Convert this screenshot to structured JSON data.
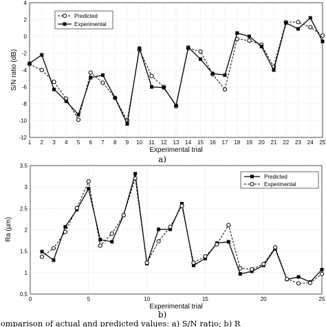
{
  "chart_data": [
    {
      "type": "line",
      "xlabel": "Experimental trial",
      "ylabel": "S/N ratio (dB)",
      "panel_label": "a)",
      "xlim": [
        1,
        25
      ],
      "ylim": [
        -12,
        4
      ],
      "yticks": [
        -12,
        -10,
        -8,
        -6,
        -4,
        -2,
        0,
        2,
        4
      ],
      "x": [
        1,
        2,
        3,
        4,
        5,
        6,
        7,
        8,
        9,
        10,
        11,
        12,
        13,
        14,
        15,
        16,
        17,
        18,
        19,
        20,
        21,
        22,
        23,
        24,
        25
      ],
      "legend_position": "top-left",
      "series": [
        {
          "name": "Predicted",
          "style": "dashed-circle",
          "values": [
            -3.3,
            -4.0,
            -5.4,
            -7.4,
            -9.9,
            -4.3,
            -5.5,
            -7.3,
            -10.0,
            -1.6,
            -4.7,
            -6.0,
            -8.3,
            -1.4,
            -1.8,
            -4.5,
            -6.3,
            -0.3,
            -0.5,
            -1.0,
            -3.6,
            1.7,
            1.7,
            1.1,
            0.1
          ]
        },
        {
          "name": "Experimental",
          "style": "solid-square",
          "values": [
            -3.2,
            -2.2,
            -6.3,
            -7.7,
            -9.3,
            -4.9,
            -4.6,
            -7.3,
            -10.4,
            -1.4,
            -6.0,
            -6.1,
            -8.2,
            -1.3,
            -2.7,
            -4.4,
            -4.6,
            0.4,
            0.0,
            -1.2,
            -4.0,
            1.6,
            0.9,
            2.2,
            -0.6
          ]
        }
      ]
    },
    {
      "type": "line",
      "xlabel": "Experimental trial",
      "ylabel": "Ra (µm)",
      "panel_label": "b)",
      "xlim": [
        0,
        25
      ],
      "ylim": [
        0.5,
        3.5
      ],
      "xticks": [
        0,
        5,
        10,
        15,
        20,
        25
      ],
      "yticks": [
        0.5,
        1,
        1.5,
        2,
        2.5,
        3,
        3.5
      ],
      "x": [
        1,
        2,
        3,
        4,
        5,
        6,
        7,
        8,
        9,
        10,
        11,
        12,
        13,
        14,
        15,
        16,
        17,
        18,
        19,
        20,
        21,
        22,
        23,
        24,
        25
      ],
      "legend_position": "top-right",
      "series": [
        {
          "name": "Predicted",
          "style": "solid-square",
          "values": [
            1.49,
            1.29,
            2.07,
            2.47,
            2.96,
            1.77,
            1.72,
            2.34,
            3.31,
            1.21,
            2.01,
            2.01,
            2.61,
            1.17,
            1.33,
            1.69,
            1.72,
            0.97,
            1.03,
            1.17,
            1.56,
            0.84,
            0.9,
            0.78,
            1.07
          ]
        },
        {
          "name": "Experimental",
          "style": "dashed-circle",
          "values": [
            1.37,
            1.57,
            1.95,
            2.51,
            3.13,
            1.63,
            1.91,
            2.34,
            3.2,
            1.23,
            1.73,
            2.07,
            2.56,
            1.23,
            1.38,
            1.66,
            2.11,
            1.1,
            1.08,
            1.2,
            1.59,
            0.85,
            0.75,
            0.76,
            0.97
          ]
        }
      ]
    }
  ],
  "caption": "Comparison of actual and predicted values: a) S/N ratio; b) R"
}
